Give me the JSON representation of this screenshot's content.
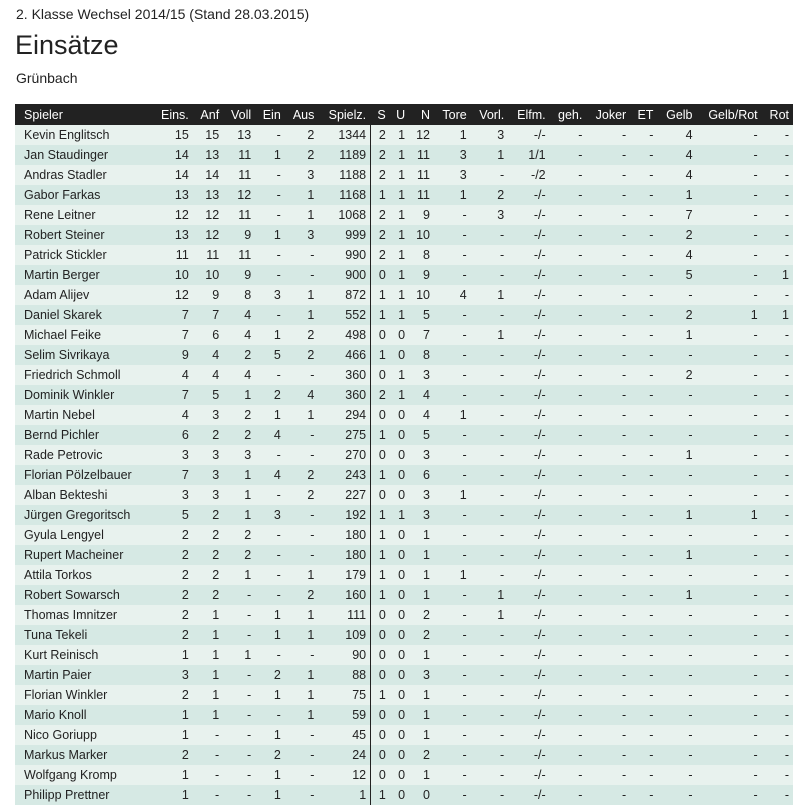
{
  "header": {
    "competition": "2. Klasse Wechsel 2014/15 (Stand 28.03.2015)",
    "title": "Einsätze",
    "team": "Grünbach"
  },
  "colors": {
    "header_bg": "#222222",
    "row_odd": "#e8f2ee",
    "row_even": "#d6e9e4"
  },
  "columns": [
    "Spieler",
    "Eins.",
    "Anf",
    "Voll",
    "Ein",
    "Aus",
    "Spielz.",
    "S",
    "U",
    "N",
    "Tore",
    "Vorl.",
    "Elfm.",
    "geh.",
    "Joker",
    "ET",
    "Gelb",
    "Gelb/Rot",
    "Rot"
  ],
  "rows": [
    [
      "Kevin Englitsch",
      "15",
      "15",
      "13",
      "-",
      "2",
      "1344",
      "2",
      "1",
      "12",
      "1",
      "3",
      "-/-",
      "-",
      "-",
      "-",
      "4",
      "-",
      "-"
    ],
    [
      "Jan Staudinger",
      "14",
      "13",
      "11",
      "1",
      "2",
      "1189",
      "2",
      "1",
      "11",
      "3",
      "1",
      "1/1",
      "-",
      "-",
      "-",
      "4",
      "-",
      "-"
    ],
    [
      "Andras Stadler",
      "14",
      "14",
      "11",
      "-",
      "3",
      "1188",
      "2",
      "1",
      "11",
      "3",
      "-",
      "-/2",
      "-",
      "-",
      "-",
      "4",
      "-",
      "-"
    ],
    [
      "Gabor Farkas",
      "13",
      "13",
      "12",
      "-",
      "1",
      "1168",
      "1",
      "1",
      "11",
      "1",
      "2",
      "-/-",
      "-",
      "-",
      "-",
      "1",
      "-",
      "-"
    ],
    [
      "Rene Leitner",
      "12",
      "12",
      "11",
      "-",
      "1",
      "1068",
      "2",
      "1",
      "9",
      "-",
      "3",
      "-/-",
      "-",
      "-",
      "-",
      "7",
      "-",
      "-"
    ],
    [
      "Robert Steiner",
      "13",
      "12",
      "9",
      "1",
      "3",
      "999",
      "2",
      "1",
      "10",
      "-",
      "-",
      "-/-",
      "-",
      "-",
      "-",
      "2",
      "-",
      "-"
    ],
    [
      "Patrick Stickler",
      "11",
      "11",
      "11",
      "-",
      "-",
      "990",
      "2",
      "1",
      "8",
      "-",
      "-",
      "-/-",
      "-",
      "-",
      "-",
      "4",
      "-",
      "-"
    ],
    [
      "Martin Berger",
      "10",
      "10",
      "9",
      "-",
      "-",
      "900",
      "0",
      "1",
      "9",
      "-",
      "-",
      "-/-",
      "-",
      "-",
      "-",
      "5",
      "-",
      "1"
    ],
    [
      "Adam Alijev",
      "12",
      "9",
      "8",
      "3",
      "1",
      "872",
      "1",
      "1",
      "10",
      "4",
      "1",
      "-/-",
      "-",
      "-",
      "-",
      "-",
      "-",
      "-"
    ],
    [
      "Daniel Skarek",
      "7",
      "7",
      "4",
      "-",
      "1",
      "552",
      "1",
      "1",
      "5",
      "-",
      "-",
      "-/-",
      "-",
      "-",
      "-",
      "2",
      "1",
      "1"
    ],
    [
      "Michael Feike",
      "7",
      "6",
      "4",
      "1",
      "2",
      "498",
      "0",
      "0",
      "7",
      "-",
      "1",
      "-/-",
      "-",
      "-",
      "-",
      "1",
      "-",
      "-"
    ],
    [
      "Selim Sivrikaya",
      "9",
      "4",
      "2",
      "5",
      "2",
      "466",
      "1",
      "0",
      "8",
      "-",
      "-",
      "-/-",
      "-",
      "-",
      "-",
      "-",
      "-",
      "-"
    ],
    [
      "Friedrich Schmoll",
      "4",
      "4",
      "4",
      "-",
      "-",
      "360",
      "0",
      "1",
      "3",
      "-",
      "-",
      "-/-",
      "-",
      "-",
      "-",
      "2",
      "-",
      "-"
    ],
    [
      "Dominik Winkler",
      "7",
      "5",
      "1",
      "2",
      "4",
      "360",
      "2",
      "1",
      "4",
      "-",
      "-",
      "-/-",
      "-",
      "-",
      "-",
      "-",
      "-",
      "-"
    ],
    [
      "Martin Nebel",
      "4",
      "3",
      "2",
      "1",
      "1",
      "294",
      "0",
      "0",
      "4",
      "1",
      "-",
      "-/-",
      "-",
      "-",
      "-",
      "-",
      "-",
      "-"
    ],
    [
      "Bernd Pichler",
      "6",
      "2",
      "2",
      "4",
      "-",
      "275",
      "1",
      "0",
      "5",
      "-",
      "-",
      "-/-",
      "-",
      "-",
      "-",
      "-",
      "-",
      "-"
    ],
    [
      "Rade Petrovic",
      "3",
      "3",
      "3",
      "-",
      "-",
      "270",
      "0",
      "0",
      "3",
      "-",
      "-",
      "-/-",
      "-",
      "-",
      "-",
      "1",
      "-",
      "-"
    ],
    [
      "Florian Pölzelbauer",
      "7",
      "3",
      "1",
      "4",
      "2",
      "243",
      "1",
      "0",
      "6",
      "-",
      "-",
      "-/-",
      "-",
      "-",
      "-",
      "-",
      "-",
      "-"
    ],
    [
      "Alban Bekteshi",
      "3",
      "3",
      "1",
      "-",
      "2",
      "227",
      "0",
      "0",
      "3",
      "1",
      "-",
      "-/-",
      "-",
      "-",
      "-",
      "-",
      "-",
      "-"
    ],
    [
      "Jürgen Gregoritsch",
      "5",
      "2",
      "1",
      "3",
      "-",
      "192",
      "1",
      "1",
      "3",
      "-",
      "-",
      "-/-",
      "-",
      "-",
      "-",
      "1",
      "1",
      "-"
    ],
    [
      "Gyula Lengyel",
      "2",
      "2",
      "2",
      "-",
      "-",
      "180",
      "1",
      "0",
      "1",
      "-",
      "-",
      "-/-",
      "-",
      "-",
      "-",
      "-",
      "-",
      "-"
    ],
    [
      "Rupert Macheiner",
      "2",
      "2",
      "2",
      "-",
      "-",
      "180",
      "1",
      "0",
      "1",
      "-",
      "-",
      "-/-",
      "-",
      "-",
      "-",
      "1",
      "-",
      "-"
    ],
    [
      "Attila Torkos",
      "2",
      "2",
      "1",
      "-",
      "1",
      "179",
      "1",
      "0",
      "1",
      "1",
      "-",
      "-/-",
      "-",
      "-",
      "-",
      "-",
      "-",
      "-"
    ],
    [
      "Robert Sowarsch",
      "2",
      "2",
      "-",
      "-",
      "2",
      "160",
      "1",
      "0",
      "1",
      "-",
      "1",
      "-/-",
      "-",
      "-",
      "-",
      "1",
      "-",
      "-"
    ],
    [
      "Thomas Imnitzer",
      "2",
      "1",
      "-",
      "1",
      "1",
      "111",
      "0",
      "0",
      "2",
      "-",
      "1",
      "-/-",
      "-",
      "-",
      "-",
      "-",
      "-",
      "-"
    ],
    [
      "Tuna Tekeli",
      "2",
      "1",
      "-",
      "1",
      "1",
      "109",
      "0",
      "0",
      "2",
      "-",
      "-",
      "-/-",
      "-",
      "-",
      "-",
      "-",
      "-",
      "-"
    ],
    [
      "Kurt Reinisch",
      "1",
      "1",
      "1",
      "-",
      "-",
      "90",
      "0",
      "0",
      "1",
      "-",
      "-",
      "-/-",
      "-",
      "-",
      "-",
      "-",
      "-",
      "-"
    ],
    [
      "Martin Paier",
      "3",
      "1",
      "-",
      "2",
      "1",
      "88",
      "0",
      "0",
      "3",
      "-",
      "-",
      "-/-",
      "-",
      "-",
      "-",
      "-",
      "-",
      "-"
    ],
    [
      "Florian Winkler",
      "2",
      "1",
      "-",
      "1",
      "1",
      "75",
      "1",
      "0",
      "1",
      "-",
      "-",
      "-/-",
      "-",
      "-",
      "-",
      "-",
      "-",
      "-"
    ],
    [
      "Mario Knoll",
      "1",
      "1",
      "-",
      "-",
      "1",
      "59",
      "0",
      "0",
      "1",
      "-",
      "-",
      "-/-",
      "-",
      "-",
      "-",
      "-",
      "-",
      "-"
    ],
    [
      "Nico Goriupp",
      "1",
      "-",
      "-",
      "1",
      "-",
      "45",
      "0",
      "0",
      "1",
      "-",
      "-",
      "-/-",
      "-",
      "-",
      "-",
      "-",
      "-",
      "-"
    ],
    [
      "Markus Marker",
      "2",
      "-",
      "-",
      "2",
      "-",
      "24",
      "0",
      "0",
      "2",
      "-",
      "-",
      "-/-",
      "-",
      "-",
      "-",
      "-",
      "-",
      "-"
    ],
    [
      "Wolfgang Kromp",
      "1",
      "-",
      "-",
      "1",
      "-",
      "12",
      "0",
      "0",
      "1",
      "-",
      "-",
      "-/-",
      "-",
      "-",
      "-",
      "-",
      "-",
      "-"
    ],
    [
      "Philipp Prettner",
      "1",
      "-",
      "-",
      "1",
      "-",
      "1",
      "1",
      "0",
      "0",
      "-",
      "-",
      "-/-",
      "-",
      "-",
      "-",
      "-",
      "-",
      "-"
    ]
  ]
}
